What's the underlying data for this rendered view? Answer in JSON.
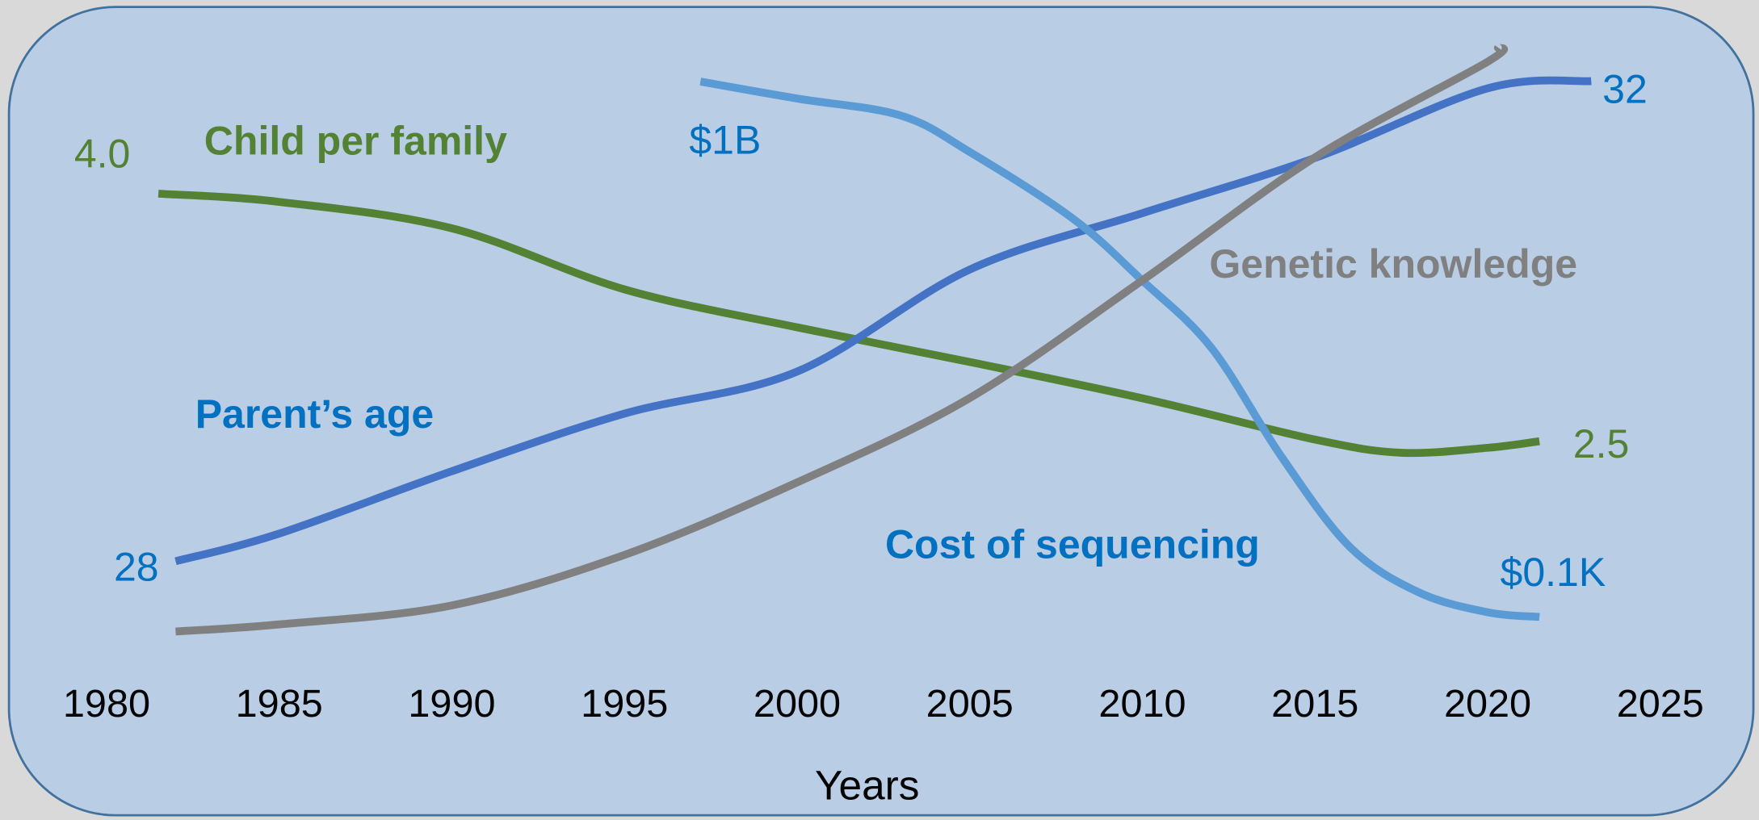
{
  "chart_data": {
    "type": "line",
    "x_label": "Years",
    "xlim": [
      1980,
      2025
    ],
    "xticks": [
      1980,
      1985,
      1990,
      1995,
      2000,
      2005,
      2010,
      2015,
      2020,
      2025
    ],
    "series": [
      {
        "name": "Child per family",
        "color": "#548235",
        "label_color": "#548235",
        "ylim": [
          1.3,
          4.9
        ],
        "x": [
          1981.5,
          1985,
          1990,
          1995,
          2000,
          2005,
          2010,
          2015,
          2017.5,
          2020,
          2021.5
        ],
        "values": [
          4.0,
          3.95,
          3.79,
          3.42,
          3.19,
          2.98,
          2.76,
          2.51,
          2.43,
          2.46,
          2.5
        ],
        "value_labels": [
          "4.0",
          null,
          null,
          null,
          null,
          null,
          null,
          null,
          null,
          null,
          "2.5"
        ]
      },
      {
        "name": "Parent’s age",
        "color": "#4472c4",
        "label_color": "#0070c0",
        "ylim": [
          27.35,
          32.3
        ],
        "x": [
          1982,
          1985,
          1990,
          1995,
          2000,
          2005,
          2010,
          2015,
          2020,
          2023
        ],
        "values": [
          28,
          28.23,
          28.75,
          29.23,
          29.58,
          30.43,
          30.9,
          31.36,
          31.94,
          32
        ],
        "value_labels": [
          "28",
          null,
          null,
          null,
          null,
          null,
          null,
          null,
          null,
          "32"
        ]
      },
      {
        "name": "Cost of sequencing",
        "color": "#5b9bd5",
        "label_color": "#0070c0",
        "log": true,
        "ylim": [
          51,
          3000000000
        ],
        "x": [
          1997.2,
          2000,
          2003,
          2005,
          2008,
          2010,
          2012,
          2014,
          2016,
          2018,
          2020,
          2021.5
        ],
        "values": [
          1000000000,
          600000000,
          360000000,
          120000000,
          16000000,
          2500000,
          330000,
          13000,
          830,
          210,
          115,
          100
        ],
        "value_labels": [
          "$1B",
          null,
          null,
          null,
          null,
          null,
          null,
          null,
          null,
          null,
          null,
          "$0.1K"
        ]
      },
      {
        "name": "Genetic knowledge",
        "color": "#808080",
        "label_color": "#808080",
        "ylim": [
          0,
          100
        ],
        "x": [
          1982,
          1985,
          1990,
          1995,
          2000,
          2005,
          2010,
          2015,
          2020,
          2020.3
        ],
        "values": [
          1.3,
          2.5,
          5.7,
          14.2,
          26.4,
          40.6,
          60.4,
          81.1,
          97.2,
          99.6
        ]
      }
    ]
  }
}
